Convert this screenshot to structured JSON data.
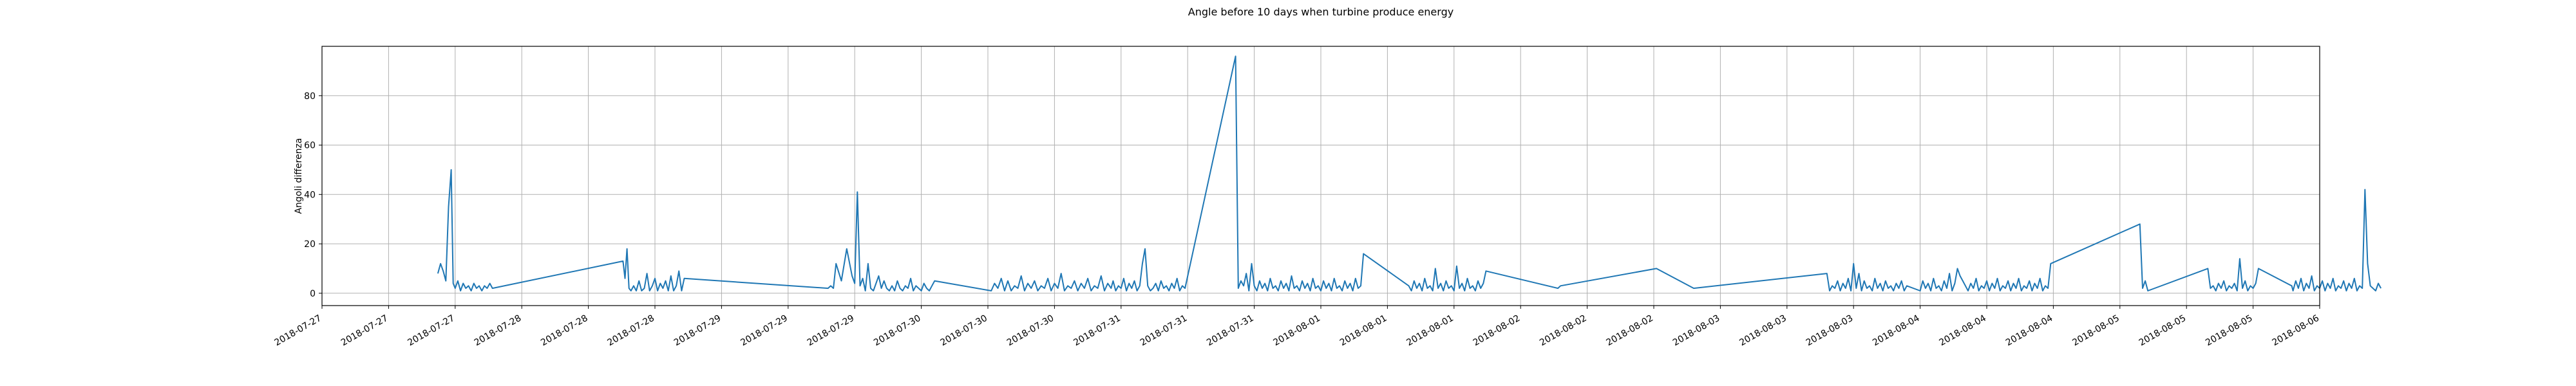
{
  "chart_data": {
    "type": "line",
    "title": "Angle before 10 days when turbine produce energy",
    "xlabel": "",
    "ylabel": "Angoli differenza",
    "ylim": [
      -5,
      100
    ],
    "yticks": [
      0,
      20,
      40,
      60,
      80
    ],
    "xticklabels": [
      "2018-07-27",
      "2018-07-27",
      "2018-07-27",
      "2018-07-28",
      "2018-07-28",
      "2018-07-28",
      "2018-07-29",
      "2018-07-29",
      "2018-07-29",
      "2018-07-30",
      "2018-07-30",
      "2018-07-30",
      "2018-07-31",
      "2018-07-31",
      "2018-07-31",
      "2018-08-01",
      "2018-08-01",
      "2018-08-01",
      "2018-08-02",
      "2018-08-02",
      "2018-08-02",
      "2018-08-03",
      "2018-08-03",
      "2018-08-03",
      "2018-08-04",
      "2018-08-04",
      "2018-08-04",
      "2018-08-05",
      "2018-08-05",
      "2018-08-05",
      "2018-08-06"
    ],
    "grid": true,
    "series": [
      {
        "color": "#1f77b4",
        "x_step_hours": 8,
        "x": [
          1.74,
          1.78,
          1.82,
          1.86,
          1.9,
          1.94,
          1.97,
          2.0,
          2.04,
          2.08,
          2.12,
          2.16,
          2.2,
          2.24,
          2.28,
          2.32,
          2.36,
          2.4,
          2.44,
          2.48,
          2.52,
          2.56,
          4.52,
          4.55,
          4.58,
          4.61,
          4.64,
          4.68,
          4.72,
          4.76,
          4.8,
          4.84,
          4.88,
          4.92,
          4.96,
          5.0,
          5.04,
          5.08,
          5.12,
          5.16,
          5.2,
          5.24,
          5.28,
          5.32,
          5.36,
          5.4,
          5.44,
          7.6,
          7.64,
          7.68,
          7.72,
          7.8,
          7.88,
          7.96,
          8.0,
          8.04,
          8.08,
          8.12,
          8.16,
          8.2,
          8.24,
          8.28,
          8.32,
          8.36,
          8.4,
          8.44,
          8.48,
          8.52,
          8.56,
          8.6,
          8.64,
          8.68,
          8.72,
          8.76,
          8.8,
          8.84,
          8.88,
          8.92,
          8.96,
          9.0,
          9.04,
          9.08,
          9.12,
          9.16,
          9.2,
          10.05,
          10.1,
          10.15,
          10.2,
          10.25,
          10.3,
          10.35,
          10.4,
          10.45,
          10.5,
          10.55,
          10.6,
          10.65,
          10.7,
          10.75,
          10.8,
          10.85,
          10.9,
          10.95,
          11.0,
          11.05,
          11.1,
          11.15,
          11.2,
          11.25,
          11.3,
          11.35,
          11.4,
          11.45,
          11.5,
          11.55,
          11.6,
          11.65,
          11.7,
          11.75,
          11.8,
          11.85,
          11.88,
          11.92,
          11.96,
          12.0,
          12.04,
          12.08,
          12.12,
          12.16,
          12.2,
          12.24,
          12.28,
          12.32,
          12.36,
          12.4,
          12.44,
          12.48,
          12.52,
          12.56,
          12.6,
          12.64,
          12.68,
          12.72,
          12.76,
          12.8,
          12.84,
          12.88,
          12.92,
          12.96,
          13.72,
          13.76,
          13.8,
          13.84,
          13.88,
          13.92,
          13.96,
          14.0,
          14.04,
          14.08,
          14.12,
          14.16,
          14.2,
          14.24,
          14.28,
          14.32,
          14.36,
          14.4,
          14.44,
          14.48,
          14.52,
          14.56,
          14.6,
          14.64,
          14.68,
          14.72,
          14.76,
          14.8,
          14.84,
          14.88,
          14.92,
          14.96,
          15.0,
          15.04,
          15.08,
          15.12,
          15.16,
          15.2,
          15.24,
          15.28,
          15.32,
          15.36,
          15.4,
          15.44,
          15.48,
          15.52,
          15.56,
          15.6,
          15.64,
          16.32,
          16.36,
          16.4,
          16.44,
          16.48,
          16.52,
          16.56,
          16.6,
          16.64,
          16.68,
          16.72,
          16.76,
          16.8,
          16.84,
          16.88,
          16.92,
          16.96,
          17.0,
          17.04,
          17.08,
          17.12,
          17.16,
          17.2,
          17.24,
          17.28,
          17.32,
          17.36,
          17.4,
          17.44,
          17.48,
          18.56,
          18.6,
          20.04,
          20.6,
          22.6,
          22.64,
          22.68,
          22.72,
          22.76,
          22.8,
          22.84,
          22.88,
          22.92,
          22.96,
          23.0,
          23.04,
          23.08,
          23.12,
          23.16,
          23.2,
          23.24,
          23.28,
          23.32,
          23.36,
          23.4,
          23.44,
          23.48,
          23.52,
          23.56,
          23.6,
          23.64,
          23.68,
          23.72,
          23.76,
          23.8,
          24.0,
          24.04,
          24.08,
          24.12,
          24.16,
          24.2,
          24.24,
          24.28,
          24.32,
          24.36,
          24.4,
          24.44,
          24.48,
          24.52,
          24.56,
          24.6,
          24.64,
          24.68,
          24.72,
          24.76,
          24.8,
          24.84,
          24.88,
          24.92,
          24.96,
          25.0,
          25.04,
          25.08,
          25.12,
          25.16,
          25.2,
          25.24,
          25.28,
          25.32,
          25.36,
          25.4,
          25.44,
          25.48,
          25.52,
          25.56,
          25.6,
          25.64,
          25.68,
          25.72,
          25.76,
          25.8,
          25.84,
          25.88,
          25.92,
          25.96,
          27.3,
          27.34,
          27.38,
          27.42,
          28.32,
          28.36,
          28.4,
          28.44,
          28.48,
          28.52,
          28.56,
          28.6,
          28.64,
          28.68,
          28.72,
          28.76,
          28.8,
          28.84,
          28.88,
          28.92,
          28.96,
          29.0,
          29.04,
          29.08,
          29.58,
          29.6,
          29.64,
          29.68,
          29.72,
          29.76,
          29.8,
          29.84,
          29.88,
          29.92,
          29.96,
          30.0,
          30.04,
          30.08,
          30.12,
          30.16,
          30.2,
          30.24,
          30.28,
          30.32,
          30.36,
          30.4,
          30.44,
          30.48,
          30.52,
          30.56,
          30.6,
          30.64,
          30.68,
          30.72,
          30.76,
          30.8,
          30.84,
          30.88,
          30.92
        ],
        "y": [
          8,
          12,
          9,
          5,
          35,
          50,
          4,
          2,
          5,
          1,
          4,
          2,
          3,
          1,
          4,
          2,
          3,
          1,
          3,
          2,
          4,
          2,
          13,
          6,
          18,
          2,
          1,
          3,
          1,
          5,
          1,
          2,
          8,
          1,
          3,
          6,
          1,
          4,
          2,
          5,
          1,
          7,
          1,
          3,
          9,
          1,
          6,
          2,
          3,
          2,
          12,
          5,
          18,
          7,
          4,
          41,
          3,
          6,
          1,
          12,
          2,
          1,
          4,
          7,
          2,
          5,
          2,
          1,
          3,
          1,
          5,
          2,
          1,
          3,
          2,
          6,
          1,
          3,
          2,
          1,
          4,
          2,
          1,
          3,
          5,
          1,
          4,
          2,
          6,
          1,
          5,
          1,
          3,
          2,
          7,
          1,
          4,
          2,
          5,
          1,
          3,
          2,
          6,
          1,
          4,
          2,
          8,
          1,
          3,
          2,
          5,
          1,
          4,
          2,
          6,
          1,
          3,
          2,
          7,
          1,
          4,
          2,
          5,
          1,
          3,
          2,
          6,
          1,
          4,
          2,
          5,
          1,
          3,
          12,
          18,
          3,
          1,
          2,
          4,
          1,
          5,
          2,
          3,
          1,
          4,
          2,
          6,
          1,
          3,
          2,
          96,
          2,
          5,
          3,
          8,
          1,
          12,
          3,
          1,
          5,
          2,
          4,
          1,
          6,
          2,
          3,
          1,
          5,
          2,
          4,
          1,
          7,
          2,
          3,
          1,
          5,
          2,
          4,
          1,
          6,
          2,
          3,
          1,
          5,
          2,
          4,
          1,
          6,
          2,
          3,
          1,
          5,
          2,
          4,
          1,
          6,
          2,
          3,
          16,
          3,
          1,
          5,
          2,
          4,
          1,
          6,
          2,
          3,
          1,
          10,
          2,
          4,
          1,
          5,
          2,
          3,
          1,
          11,
          2,
          4,
          1,
          6,
          2,
          3,
          1,
          5,
          2,
          4,
          9,
          2,
          3,
          10,
          2,
          8,
          1,
          3,
          2,
          5,
          1,
          4,
          2,
          6,
          1,
          12,
          2,
          8,
          1,
          5,
          2,
          3,
          1,
          6,
          2,
          4,
          1,
          5,
          2,
          3,
          1,
          4,
          2,
          5,
          1,
          3,
          1,
          5,
          2,
          4,
          1,
          6,
          2,
          3,
          1,
          5,
          2,
          8,
          1,
          4,
          10,
          7,
          5,
          3,
          1,
          4,
          2,
          6,
          1,
          3,
          2,
          5,
          1,
          4,
          2,
          6,
          1,
          3,
          2,
          5,
          1,
          4,
          2,
          6,
          1,
          3,
          2,
          5,
          1,
          4,
          2,
          6,
          1,
          3,
          2,
          12,
          28,
          2,
          5,
          1,
          10,
          2,
          3,
          1,
          4,
          2,
          5,
          1,
          3,
          2,
          4,
          1,
          14,
          2,
          5,
          1,
          3,
          2,
          4,
          10,
          3,
          1,
          5,
          2,
          6,
          1,
          4,
          2,
          7,
          1,
          3,
          2,
          5,
          1,
          4,
          2,
          6,
          1,
          3,
          2,
          5,
          1,
          4,
          2,
          6,
          1,
          3,
          2,
          42,
          12,
          3,
          2,
          1,
          4,
          2
        ]
      }
    ]
  }
}
